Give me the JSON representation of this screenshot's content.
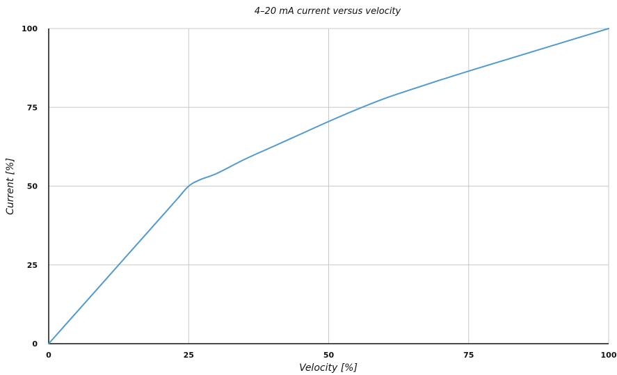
{
  "chart_data": {
    "type": "line",
    "title": "4–20 mA current versus velocity",
    "xlabel": "Velocity [%]",
    "ylabel": "Current [%]",
    "xlim": [
      0,
      100
    ],
    "ylim": [
      0,
      100
    ],
    "xticks": [
      0,
      25,
      50,
      75,
      100
    ],
    "yticks": [
      0,
      25,
      50,
      75,
      100
    ],
    "x_tick_labels": [
      "0",
      "25",
      "50",
      "75",
      "100"
    ],
    "y_tick_labels": [
      "0",
      "25",
      "50",
      "75",
      "100"
    ],
    "grid": true,
    "legend": "none",
    "series": [
      {
        "color": "#4f9ad0",
        "x": [
          0,
          5,
          10,
          15,
          20,
          23,
          25,
          27,
          30,
          35,
          40,
          45,
          50,
          55,
          60,
          65,
          70,
          75,
          80,
          85,
          90,
          95,
          100
        ],
        "y": [
          0,
          10,
          20,
          30,
          40,
          46,
          50,
          52,
          54,
          58.5,
          62.5,
          66.5,
          70.5,
          74.3,
          77.8,
          80.8,
          83.7,
          86.5,
          89.2,
          91.9,
          94.6,
          97.3,
          100
        ]
      }
    ]
  }
}
